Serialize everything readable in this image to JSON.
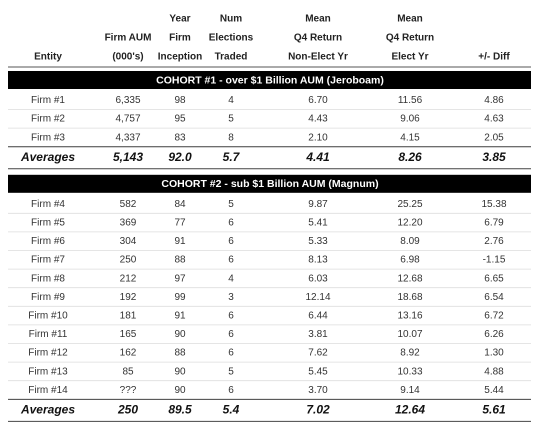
{
  "header": {
    "columns": [
      {
        "lines": [
          "Entity"
        ]
      },
      {
        "lines": [
          "Firm AUM",
          "(000's)"
        ]
      },
      {
        "lines": [
          "Year",
          "Firm",
          "Inception"
        ]
      },
      {
        "lines": [
          "Num",
          "Elections",
          "Traded"
        ]
      },
      {
        "lines": [
          "Mean",
          "Q4 Return",
          "Non-Elect Yr"
        ]
      },
      {
        "lines": [
          "Mean",
          "Q4 Return",
          "Elect Yr"
        ]
      },
      {
        "lines": [
          "+/- Diff"
        ]
      }
    ]
  },
  "cohorts": [
    {
      "title": "COHORT #1 - over $1 Billion AUM (Jeroboam)",
      "rows": [
        [
          "Firm #1",
          "6,335",
          "98",
          "4",
          "6.70",
          "11.56",
          "4.86"
        ],
        [
          "Firm #2",
          "4,757",
          "95",
          "5",
          "4.43",
          "9.06",
          "4.63"
        ],
        [
          "Firm #3",
          "4,337",
          "83",
          "8",
          "2.10",
          "4.15",
          "2.05"
        ]
      ],
      "averages": [
        "Averages",
        "5,143",
        "92.0",
        "5.7",
        "4.41",
        "8.26",
        "3.85"
      ]
    },
    {
      "title": "COHORT #2 - sub $1 Billion AUM (Magnum)",
      "rows": [
        [
          "Firm #4",
          "582",
          "84",
          "5",
          "9.87",
          "25.25",
          "15.38"
        ],
        [
          "Firm #5",
          "369",
          "77",
          "6",
          "5.41",
          "12.20",
          "6.79"
        ],
        [
          "Firm #6",
          "304",
          "91",
          "6",
          "5.33",
          "8.09",
          "2.76"
        ],
        [
          "Firm #7",
          "250",
          "88",
          "6",
          "8.13",
          "6.98",
          "-1.15"
        ],
        [
          "Firm #8",
          "212",
          "97",
          "4",
          "6.03",
          "12.68",
          "6.65"
        ],
        [
          "Firm #9",
          "192",
          "99",
          "3",
          "12.14",
          "18.68",
          "6.54"
        ],
        [
          "Firm #10",
          "181",
          "91",
          "6",
          "6.44",
          "13.16",
          "6.72"
        ],
        [
          "Firm #11",
          "165",
          "90",
          "6",
          "3.81",
          "10.07",
          "6.26"
        ],
        [
          "Firm #12",
          "162",
          "88",
          "6",
          "7.62",
          "8.92",
          "1.30"
        ],
        [
          "Firm #13",
          "85",
          "90",
          "5",
          "5.45",
          "10.33",
          "4.88"
        ],
        [
          "Firm #14",
          "???",
          "90",
          "6",
          "3.70",
          "9.14",
          "5.44"
        ]
      ],
      "averages": [
        "Averages",
        "250",
        "89.5",
        "5.4",
        "7.02",
        "12.64",
        "5.61"
      ]
    }
  ]
}
